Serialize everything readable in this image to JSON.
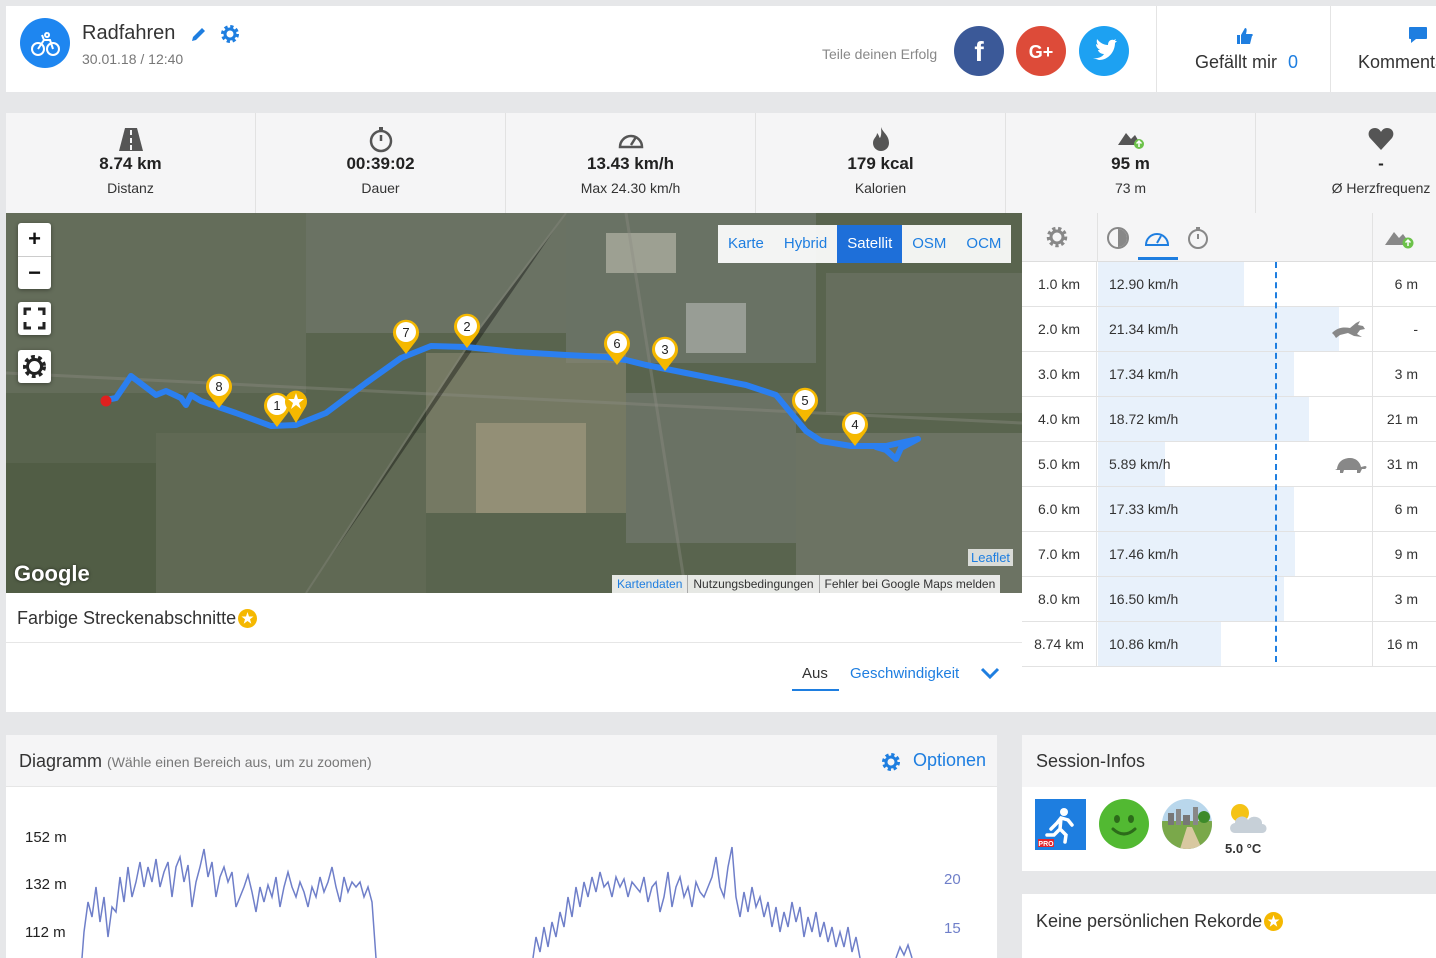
{
  "activity": {
    "title": "Radfahren",
    "date": "30.01.18 / 12:40",
    "icon": "bicycle-icon"
  },
  "share": {
    "label": "Teile deinen Erfolg",
    "networks": [
      "facebook",
      "google-plus",
      "twitter"
    ]
  },
  "like": {
    "label": "Gefällt mir",
    "count": "0"
  },
  "comments": {
    "label": "Kommentare"
  },
  "stats": [
    {
      "icon": "road-icon",
      "value": "8.74 km",
      "label": "Distanz"
    },
    {
      "icon": "stopwatch-icon",
      "value": "00:39:02",
      "label": "Dauer"
    },
    {
      "icon": "speedometer-icon",
      "value": "13.43 km/h",
      "label": "Max 24.30 km/h"
    },
    {
      "icon": "flame-icon",
      "value": "179 kcal",
      "label": "Kalorien"
    },
    {
      "icon": "elevation-up-icon",
      "value": "95 m",
      "label": "73 m"
    },
    {
      "icon": "heart-icon",
      "value": "-",
      "label": "Ø Herzfrequenz"
    }
  ],
  "map": {
    "zoom_in": "+",
    "zoom_out": "−",
    "layers": [
      "Karte",
      "Hybrid",
      "Satellit",
      "OSM",
      "OCM"
    ],
    "active_layer": "Satellit",
    "logo": "Google",
    "leaflet": "Leaflet",
    "attribution": [
      "Kartendaten",
      "Nutzungsbedingungen",
      "Fehler bei Google Maps melden"
    ],
    "markers": [
      "1",
      "2",
      "3",
      "4",
      "5",
      "6",
      "7",
      "8"
    ]
  },
  "segments": {
    "title": "Farbige Streckenabschnitte",
    "options": [
      "Aus",
      "Geschwindigkeit"
    ],
    "selected": "Aus"
  },
  "splits": [
    {
      "dist": "1.0 km",
      "speed": "12.90 km/h",
      "kmh": 12.9,
      "alt": "6 m",
      "badge": ""
    },
    {
      "dist": "2.0 km",
      "speed": "21.34 km/h",
      "kmh": 21.34,
      "alt": "-",
      "badge": "hare"
    },
    {
      "dist": "3.0 km",
      "speed": "17.34 km/h",
      "kmh": 17.34,
      "alt": "3 m",
      "badge": ""
    },
    {
      "dist": "4.0 km",
      "speed": "18.72 km/h",
      "kmh": 18.72,
      "alt": "21 m",
      "badge": ""
    },
    {
      "dist": "5.0 km",
      "speed": "5.89 km/h",
      "kmh": 5.89,
      "alt": "31 m",
      "badge": "turtle"
    },
    {
      "dist": "6.0 km",
      "speed": "17.33 km/h",
      "kmh": 17.33,
      "alt": "6 m",
      "badge": ""
    },
    {
      "dist": "7.0 km",
      "speed": "17.46 km/h",
      "kmh": 17.46,
      "alt": "9 m",
      "badge": ""
    },
    {
      "dist": "8.0 km",
      "speed": "16.50 km/h",
      "kmh": 16.5,
      "alt": "3 m",
      "badge": ""
    },
    {
      "dist": "8.74 km",
      "speed": "10.86 km/h",
      "kmh": 10.86,
      "alt": "16 m",
      "badge": ""
    }
  ],
  "diagram": {
    "title": "Diagramm",
    "subtitle": "(Wähle einen Bereich aus, um zu zoomen)",
    "options_label": "Optionen"
  },
  "chart_data": {
    "type": "line",
    "y_left_ticks": [
      "152 m",
      "132 m",
      "112 m"
    ],
    "y_right_ticks": [
      "20",
      "15"
    ]
  },
  "session": {
    "title": "Session-Infos",
    "icons": [
      "runtastic-pro-app-icon",
      "smiley-happy-icon",
      "terrain-mixed-icon",
      "weather-cloudy-icon"
    ],
    "temperature": "5.0 °C"
  },
  "records": {
    "title": "Keine persönlichen Rekorde"
  },
  "colors": {
    "accent": "#1e7ee0",
    "route": "#2b7ff0",
    "marker": "#f5b800",
    "chart_line": "#6f7fc9"
  }
}
